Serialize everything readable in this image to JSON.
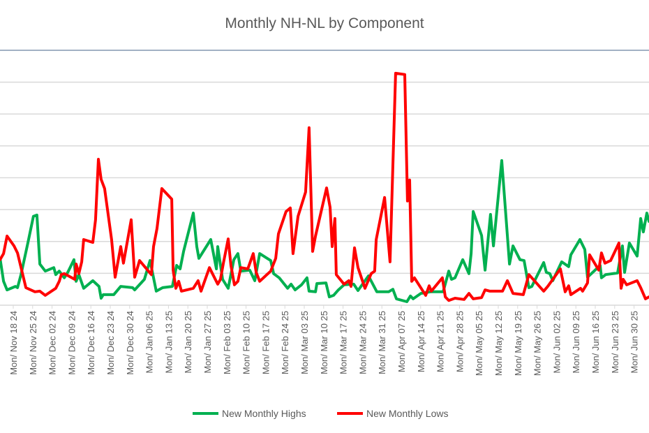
{
  "chart_data": {
    "type": "line",
    "title": "Monthly NH-NL by Component",
    "xlabel": "",
    "ylabel": "",
    "x_unit": "weeks since Mon/ Nov 18 24",
    "ylim": [
      0,
      80
    ],
    "y_grid_step": 10,
    "grid": true,
    "legend_position": "bottom",
    "categories": [
      "Mon/ Nov 18 24",
      "Mon/ Nov 25 24",
      "Mon/ Dec 02 24",
      "Mon/ Dec 09 24",
      "Mon/ Dec 16 24",
      "Mon/ Dec 23 24",
      "Mon/ Dec 30 24",
      "Mon/ Jan 06 25",
      "Mon/ Jan 13 25",
      "Mon/ Jan 20 25",
      "Mon/ Jan 27 25",
      "Mon/ Feb 03 25",
      "Mon/ Feb 10 25",
      "Mon/ Feb 17 25",
      "Mon/ Feb 24 25",
      "Mon/ Mar 03 25",
      "Mon/ Mar 10 25",
      "Mon/ Mar 17 25",
      "Mon/ Mar 24 25",
      "Mon/ Mar 31 25",
      "Mon/ Apr 07 25",
      "Mon/ Apr 14 25",
      "Mon/ Apr 21 25",
      "Mon/ Apr 28 25",
      "Mon/ May 05 25",
      "Mon/ May 12 25",
      "Mon/ May 19 25",
      "Mon/ May 26 25",
      "Mon/ Jun 02 25",
      "Mon/ Jun 09 25",
      "Mon/ Jun 16 25",
      "Mon/ Jun 23 25",
      "Mon/ Jun 30 25"
    ],
    "series": [
      {
        "name": "New Monthly Highs",
        "color": "#00b050",
        "points": [
          [
            -0.68,
            14.7
          ],
          [
            -0.5,
            7.5
          ],
          [
            -0.32,
            4.8
          ],
          [
            0.11,
            5.9
          ],
          [
            0.22,
            5.5
          ],
          [
            0.4,
            9.6
          ],
          [
            0.76,
            19.7
          ],
          [
            1.04,
            27.9
          ],
          [
            1.22,
            28.3
          ],
          [
            1.37,
            12.9
          ],
          [
            1.65,
            10.7
          ],
          [
            2.09,
            11.8
          ],
          [
            2.19,
            9.6
          ],
          [
            2.37,
            10.7
          ],
          [
            2.63,
            8.6
          ],
          [
            2.81,
            10.3
          ],
          [
            3.13,
            14.3
          ],
          [
            3.24,
            7.5
          ],
          [
            3.38,
            9.6
          ],
          [
            3.63,
            5.3
          ],
          [
            4.1,
            7.7
          ],
          [
            4.42,
            5.9
          ],
          [
            4.53,
            2.2
          ],
          [
            4.64,
            3.3
          ],
          [
            5.18,
            3.3
          ],
          [
            5.54,
            5.9
          ],
          [
            6.15,
            5.5
          ],
          [
            6.26,
            4.8
          ],
          [
            6.76,
            8.1
          ],
          [
            7.05,
            14.0
          ],
          [
            7.37,
            4.4
          ],
          [
            7.7,
            5.5
          ],
          [
            8.2,
            5.9
          ],
          [
            8.42,
            12.5
          ],
          [
            8.6,
            11.4
          ],
          [
            8.78,
            16.9
          ],
          [
            9.28,
            28.9
          ],
          [
            9.46,
            18.4
          ],
          [
            9.57,
            14.7
          ],
          [
            10.18,
            20.6
          ],
          [
            10.47,
            11.4
          ],
          [
            10.54,
            18.4
          ],
          [
            10.79,
            8.1
          ],
          [
            11.08,
            5.3
          ],
          [
            11.37,
            14.3
          ],
          [
            11.58,
            16.2
          ],
          [
            11.73,
            10.7
          ],
          [
            12.19,
            11.0
          ],
          [
            12.45,
            7.7
          ],
          [
            12.7,
            16.2
          ],
          [
            13.27,
            14.0
          ],
          [
            13.42,
            9.9
          ],
          [
            13.71,
            8.6
          ],
          [
            14.14,
            5.3
          ],
          [
            14.32,
            6.6
          ],
          [
            14.53,
            4.8
          ],
          [
            14.86,
            6.4
          ],
          [
            15.14,
            8.6
          ],
          [
            15.25,
            4.4
          ],
          [
            15.58,
            4.2
          ],
          [
            15.65,
            6.8
          ],
          [
            16.12,
            7.0
          ],
          [
            16.29,
            2.6
          ],
          [
            16.51,
            3.1
          ],
          [
            16.76,
            4.8
          ],
          [
            17.05,
            6.4
          ],
          [
            17.55,
            6.6
          ],
          [
            17.77,
            4.6
          ],
          [
            18.31,
            9.2
          ],
          [
            18.74,
            4.2
          ],
          [
            19.35,
            4.2
          ],
          [
            19.57,
            5.0
          ],
          [
            19.75,
            2.0
          ],
          [
            20.29,
            1.1
          ],
          [
            20.47,
            2.9
          ],
          [
            20.61,
            2.0
          ],
          [
            21.01,
            3.7
          ],
          [
            21.51,
            4.2
          ],
          [
            22.16,
            4.2
          ],
          [
            22.45,
            10.7
          ],
          [
            22.59,
            8.1
          ],
          [
            22.77,
            8.6
          ],
          [
            23.17,
            14.3
          ],
          [
            23.49,
            9.9
          ],
          [
            23.6,
            16.2
          ],
          [
            23.71,
            29.4
          ],
          [
            24.14,
            21.9
          ],
          [
            24.32,
            11.0
          ],
          [
            24.6,
            28.5
          ],
          [
            24.75,
            18.6
          ],
          [
            25.18,
            45.4
          ],
          [
            25.58,
            12.9
          ],
          [
            25.76,
            18.6
          ],
          [
            26.12,
            14.3
          ],
          [
            26.33,
            14.0
          ],
          [
            26.58,
            5.5
          ],
          [
            26.73,
            5.9
          ],
          [
            27.34,
            13.4
          ],
          [
            27.48,
            10.3
          ],
          [
            27.66,
            9.9
          ],
          [
            27.81,
            7.7
          ],
          [
            28.27,
            13.6
          ],
          [
            28.63,
            12.1
          ],
          [
            28.74,
            15.8
          ],
          [
            29.21,
            20.6
          ],
          [
            29.46,
            17.5
          ],
          [
            29.6,
            8.8
          ],
          [
            30.25,
            12.5
          ],
          [
            30.32,
            8.6
          ],
          [
            30.54,
            9.6
          ],
          [
            31.15,
            10.1
          ],
          [
            31.4,
            18.6
          ],
          [
            31.51,
            10.3
          ],
          [
            31.76,
            19.5
          ],
          [
            32.16,
            15.4
          ],
          [
            32.34,
            27.2
          ],
          [
            32.48,
            23.0
          ],
          [
            32.66,
            28.9
          ],
          [
            32.77,
            26.3
          ]
        ]
      },
      {
        "name": "New Monthly Lows",
        "color": "#ff0000",
        "points": [
          [
            -0.68,
            14.3
          ],
          [
            -0.5,
            16.2
          ],
          [
            -0.32,
            21.7
          ],
          [
            0.04,
            18.6
          ],
          [
            0.22,
            16.4
          ],
          [
            0.65,
            5.5
          ],
          [
            1.12,
            4.2
          ],
          [
            1.37,
            4.4
          ],
          [
            1.65,
            3.1
          ],
          [
            2.19,
            5.3
          ],
          [
            2.37,
            7.5
          ],
          [
            2.48,
            9.6
          ],
          [
            2.63,
            9.9
          ],
          [
            3.17,
            8.1
          ],
          [
            3.24,
            12.9
          ],
          [
            3.38,
            9.9
          ],
          [
            3.53,
            13.6
          ],
          [
            3.63,
            20.6
          ],
          [
            4.1,
            19.7
          ],
          [
            4.24,
            26.8
          ],
          [
            4.39,
            45.8
          ],
          [
            4.53,
            39.5
          ],
          [
            4.71,
            36.6
          ],
          [
            5.07,
            20.6
          ],
          [
            5.25,
            8.8
          ],
          [
            5.54,
            18.4
          ],
          [
            5.68,
            13.2
          ],
          [
            6.08,
            26.8
          ],
          [
            6.26,
            8.8
          ],
          [
            6.51,
            14.0
          ],
          [
            7.12,
            9.6
          ],
          [
            7.23,
            18.4
          ],
          [
            7.41,
            24.1
          ],
          [
            7.66,
            36.6
          ],
          [
            8.17,
            33.3
          ],
          [
            8.24,
            11.0
          ],
          [
            8.38,
            5.3
          ],
          [
            8.53,
            7.5
          ],
          [
            8.67,
            4.4
          ],
          [
            9.28,
            5.3
          ],
          [
            9.53,
            7.7
          ],
          [
            9.68,
            4.4
          ],
          [
            10.11,
            11.8
          ],
          [
            10.54,
            6.6
          ],
          [
            10.68,
            8.1
          ],
          [
            10.83,
            13.2
          ],
          [
            11.08,
            20.8
          ],
          [
            11.22,
            12.5
          ],
          [
            11.4,
            6.4
          ],
          [
            11.58,
            7.5
          ],
          [
            11.73,
            11.8
          ],
          [
            12.09,
            11.4
          ],
          [
            12.37,
            16.2
          ],
          [
            12.52,
            10.3
          ],
          [
            12.7,
            7.5
          ],
          [
            13.27,
            10.7
          ],
          [
            13.53,
            14.7
          ],
          [
            13.67,
            22.4
          ],
          [
            14.06,
            29.4
          ],
          [
            14.28,
            30.5
          ],
          [
            14.42,
            16.2
          ],
          [
            14.68,
            27.9
          ],
          [
            15.07,
            35.5
          ],
          [
            15.25,
            55.7
          ],
          [
            15.43,
            16.9
          ],
          [
            15.58,
            21.7
          ],
          [
            16.15,
            36.8
          ],
          [
            16.33,
            30.7
          ],
          [
            16.44,
            18.4
          ],
          [
            16.58,
            27.2
          ],
          [
            16.65,
            9.6
          ],
          [
            17.05,
            6.6
          ],
          [
            17.3,
            7.7
          ],
          [
            17.41,
            5.9
          ],
          [
            17.59,
            18.0
          ],
          [
            17.77,
            11.8
          ],
          [
            18.13,
            5.3
          ],
          [
            18.45,
            9.9
          ],
          [
            18.63,
            10.7
          ],
          [
            18.71,
            20.6
          ],
          [
            19.14,
            33.8
          ],
          [
            19.42,
            13.6
          ],
          [
            19.71,
            72.8
          ],
          [
            20.18,
            72.4
          ],
          [
            20.32,
            32.7
          ],
          [
            20.43,
            39.3
          ],
          [
            20.54,
            7.5
          ],
          [
            20.68,
            8.6
          ],
          [
            21.26,
            3.1
          ],
          [
            21.44,
            6.1
          ],
          [
            21.55,
            4.4
          ],
          [
            22.12,
            8.6
          ],
          [
            22.27,
            2.6
          ],
          [
            22.45,
            1.5
          ],
          [
            22.77,
            2.2
          ],
          [
            23.24,
            1.8
          ],
          [
            23.49,
            3.7
          ],
          [
            23.71,
            2.0
          ],
          [
            24.14,
            2.4
          ],
          [
            24.32,
            4.8
          ],
          [
            24.57,
            4.4
          ],
          [
            25.22,
            4.4
          ],
          [
            25.47,
            7.7
          ],
          [
            25.76,
            3.7
          ],
          [
            26.29,
            3.3
          ],
          [
            26.58,
            9.6
          ],
          [
            27.34,
            4.4
          ],
          [
            27.55,
            5.9
          ],
          [
            28.2,
            11.4
          ],
          [
            28.45,
            4.2
          ],
          [
            28.63,
            6.1
          ],
          [
            28.74,
            3.3
          ],
          [
            29.24,
            5.3
          ],
          [
            29.35,
            4.4
          ],
          [
            29.6,
            7.0
          ],
          [
            29.71,
            15.8
          ],
          [
            30.18,
            11.0
          ],
          [
            30.32,
            16.4
          ],
          [
            30.5,
            13.2
          ],
          [
            30.79,
            14.0
          ],
          [
            31.22,
            19.5
          ],
          [
            31.33,
            5.3
          ],
          [
            31.44,
            8.1
          ],
          [
            31.62,
            6.4
          ],
          [
            32.16,
            7.7
          ],
          [
            32.34,
            5.5
          ],
          [
            32.59,
            2.0
          ],
          [
            32.77,
            2.6
          ]
        ]
      }
    ]
  }
}
